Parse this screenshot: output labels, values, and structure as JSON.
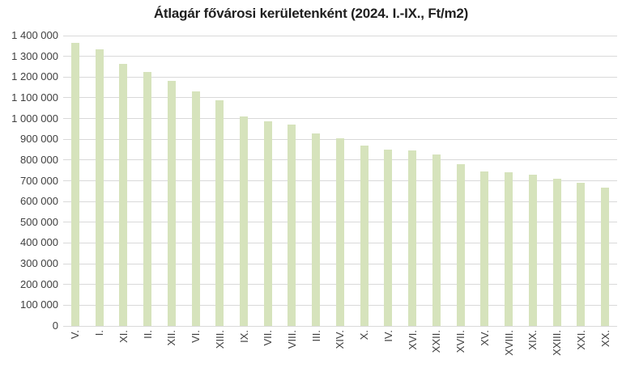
{
  "chart_data": {
    "type": "bar",
    "title": "Átlagár fővárosi kerületenként (2024. I.-IX., Ft/m2)",
    "categories": [
      "V.",
      "I.",
      "XI.",
      "II.",
      "XII.",
      "VI.",
      "XIII.",
      "IX.",
      "VII.",
      "VIII.",
      "III.",
      "XIV.",
      "X.",
      "IV.",
      "XVI.",
      "XXII.",
      "XVII.",
      "XV.",
      "XVIII.",
      "XIX.",
      "XXIII.",
      "XXI.",
      "XX."
    ],
    "values": [
      1365000,
      1335000,
      1265000,
      1225000,
      1180000,
      1130000,
      1090000,
      1010000,
      985000,
      970000,
      930000,
      905000,
      870000,
      850000,
      845000,
      825000,
      780000,
      745000,
      740000,
      730000,
      710000,
      690000,
      665000
    ],
    "xlabel": "",
    "ylabel": "",
    "ylim": [
      0,
      1400000
    ],
    "ytick_step": 100000,
    "ytick_labels": [
      "0",
      "100 000",
      "200 000",
      "300 000",
      "400 000",
      "500 000",
      "600 000",
      "700 000",
      "800 000",
      "900 000",
      "1 000 000",
      "1 100 000",
      "1 200 000",
      "1 300 000",
      "1 400 000"
    ],
    "grid": true,
    "legend": false,
    "bar_color": "#d6e3bc",
    "gridline_color": "#d9d9d9",
    "text_color": "#404040",
    "title_color": "#1f1f1f"
  }
}
